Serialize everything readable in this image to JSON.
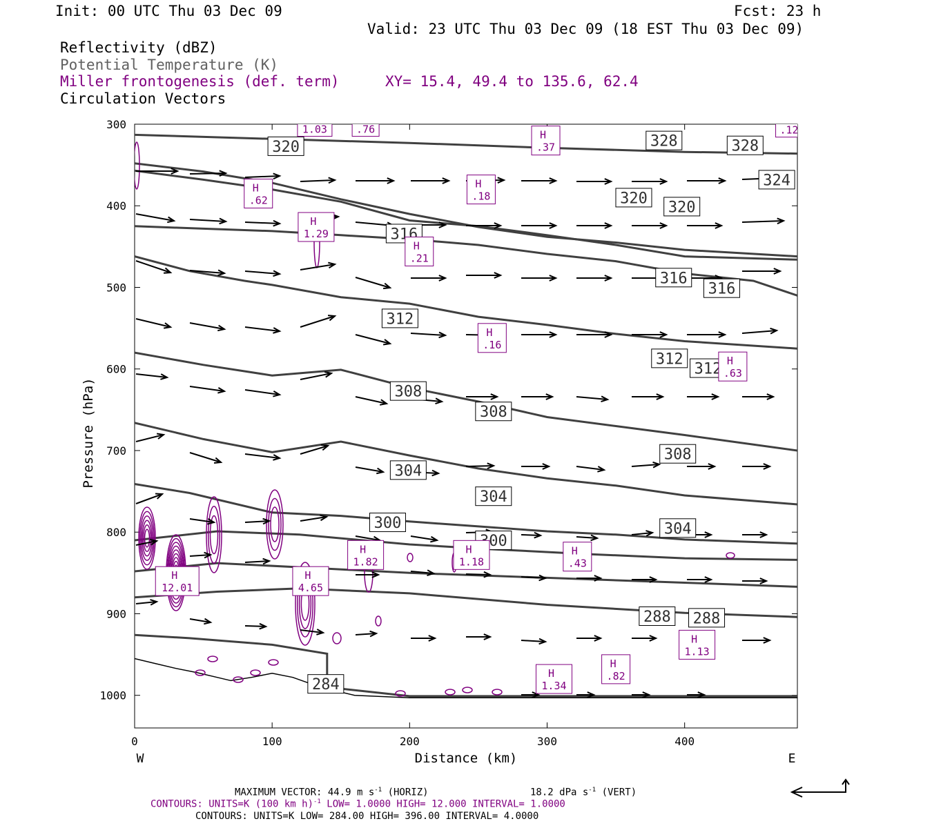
{
  "header": {
    "init": "Init: 00 UTC Thu 03 Dec 09",
    "fcst": "Fcst:   23 h",
    "valid": "Valid: 23 UTC Thu 03 Dec 09 (18 EST Thu 03 Dec 09)"
  },
  "legend": {
    "line1": "Reflectivity (dBZ)",
    "line2": "Potential Temperature (K)",
    "line3": "Miller frontogenesis (def. term)",
    "xy": "XY=  15.4, 49.4 to 135.6, 62.4",
    "line4": "Circulation Vectors"
  },
  "footer": {
    "max_vector": "MAXIMUM VECTOR:  44.9 m s",
    "max_vector_sup": "-1",
    "max_vector_tail": " (HORIZ)",
    "vert": "18.2 dPa s",
    "vert_sup": "-1",
    "vert_tail": " (VERT)",
    "contours1_a": "CONTOURS:  UNITS=K (100 km h)",
    "contours1_sup": "-1",
    "contours1_b": "  LOW=  1.0000       HIGH=  12.000       INTERVAL=   1.0000",
    "contours2": "CONTOURS:  UNITS=K  LOW=  284.00       HIGH=  396.00       INTERVAL=   4.0000"
  },
  "colors": {
    "theta": "#404040",
    "frontogenesis": "#800080",
    "vectors": "#000000",
    "text": "#000000"
  },
  "chart_data": {
    "type": "cross-section",
    "xlabel": "Distance (km)",
    "ylabel": "Pressure (hPa)",
    "xlim": [
      0,
      482
    ],
    "ylim": [
      1040,
      300
    ],
    "x_ticks": [
      0,
      100,
      200,
      300,
      400
    ],
    "y_ticks": [
      300,
      400,
      500,
      600,
      700,
      800,
      900,
      1000
    ],
    "x_end_labels": {
      "left": "W",
      "right": "E"
    },
    "theta_levels": [
      {
        "points": [
          [
            0,
            313
          ],
          [
            100,
            318
          ],
          [
            200,
            323
          ],
          [
            300,
            329
          ],
          [
            400,
            334
          ],
          [
            482,
            336
          ]
        ]
      },
      {
        "points": [
          [
            0,
            348
          ],
          [
            50,
            358
          ],
          [
            100,
            372
          ],
          [
            150,
            392
          ],
          [
            200,
            410
          ],
          [
            250,
            426
          ],
          [
            300,
            438
          ],
          [
            350,
            445
          ],
          [
            400,
            454
          ],
          [
            482,
            462
          ]
        ]
      },
      {
        "points": [
          [
            0,
            357
          ],
          [
            50,
            368
          ],
          [
            100,
            380
          ],
          [
            150,
            395
          ],
          [
            200,
            418
          ],
          [
            250,
            425
          ],
          [
            300,
            436
          ],
          [
            350,
            448
          ],
          [
            400,
            462
          ],
          [
            482,
            466
          ]
        ]
      },
      {
        "points": [
          [
            0,
            462
          ],
          [
            40,
            480
          ],
          [
            80,
            492
          ],
          [
            100,
            497
          ],
          [
            150,
            512
          ],
          [
            200,
            520
          ],
          [
            250,
            536
          ],
          [
            300,
            546
          ],
          [
            350,
            557
          ],
          [
            400,
            566
          ],
          [
            482,
            575
          ]
        ]
      },
      {
        "points": [
          [
            0,
            425
          ],
          [
            50,
            428
          ],
          [
            100,
            431
          ],
          [
            150,
            436
          ],
          [
            200,
            441
          ],
          [
            250,
            448
          ],
          [
            300,
            459
          ],
          [
            350,
            468
          ],
          [
            400,
            483
          ],
          [
            450,
            492
          ],
          [
            482,
            510
          ]
        ]
      },
      {
        "points": [
          [
            0,
            580
          ],
          [
            50,
            595
          ],
          [
            100,
            608
          ],
          [
            150,
            601
          ],
          [
            200,
            623
          ],
          [
            250,
            640
          ],
          [
            300,
            659
          ],
          [
            350,
            670
          ],
          [
            400,
            681
          ],
          [
            482,
            700
          ]
        ]
      },
      {
        "points": [
          [
            0,
            666
          ],
          [
            50,
            686
          ],
          [
            100,
            702
          ],
          [
            150,
            689
          ],
          [
            200,
            706
          ],
          [
            250,
            722
          ],
          [
            300,
            734
          ],
          [
            350,
            743
          ],
          [
            400,
            755
          ],
          [
            482,
            766
          ]
        ]
      },
      {
        "points": [
          [
            0,
            741
          ],
          [
            40,
            752
          ],
          [
            100,
            776
          ],
          [
            150,
            780
          ],
          [
            200,
            787
          ],
          [
            250,
            793
          ],
          [
            300,
            799
          ],
          [
            350,
            803
          ],
          [
            400,
            809
          ],
          [
            482,
            814
          ]
        ]
      },
      {
        "points": [
          [
            0,
            810
          ],
          [
            60,
            799
          ],
          [
            120,
            803
          ],
          [
            200,
            815
          ],
          [
            260,
            821
          ],
          [
            330,
            827
          ],
          [
            400,
            832
          ],
          [
            482,
            834
          ]
        ]
      },
      {
        "points": [
          [
            0,
            848
          ],
          [
            60,
            838
          ],
          [
            120,
            843
          ],
          [
            200,
            850
          ],
          [
            300,
            856
          ],
          [
            400,
            862
          ],
          [
            482,
            867
          ]
        ]
      },
      {
        "points": [
          [
            0,
            880
          ],
          [
            60,
            873
          ],
          [
            120,
            869
          ],
          [
            200,
            875
          ],
          [
            300,
            889
          ],
          [
            400,
            899
          ],
          [
            482,
            904
          ]
        ]
      },
      {
        "points": [
          [
            0,
            926
          ],
          [
            40,
            930
          ],
          [
            100,
            938
          ],
          [
            140,
            949
          ],
          [
            140,
            990
          ],
          [
            200,
            1001
          ],
          [
            300,
            1001
          ],
          [
            400,
            1001
          ],
          [
            482,
            1001
          ]
        ]
      }
    ],
    "theta_labels": [
      {
        "x": 110,
        "p": 327,
        "text": "320"
      },
      {
        "x": 385,
        "p": 320,
        "text": "328"
      },
      {
        "x": 444,
        "p": 326,
        "text": "328"
      },
      {
        "x": 467,
        "p": 368,
        "text": "324"
      },
      {
        "x": 363,
        "p": 390,
        "text": "320"
      },
      {
        "x": 398,
        "p": 401,
        "text": "320"
      },
      {
        "x": 196,
        "p": 434,
        "text": "316"
      },
      {
        "x": 392,
        "p": 488,
        "text": "316"
      },
      {
        "x": 427,
        "p": 501,
        "text": "316"
      },
      {
        "x": 193,
        "p": 538,
        "text": "312"
      },
      {
        "x": 389,
        "p": 587,
        "text": "312"
      },
      {
        "x": 417,
        "p": 599,
        "text": "312"
      },
      {
        "x": 199,
        "p": 627,
        "text": "308"
      },
      {
        "x": 261,
        "p": 652,
        "text": "308"
      },
      {
        "x": 395,
        "p": 704,
        "text": "308"
      },
      {
        "x": 199,
        "p": 724,
        "text": "304"
      },
      {
        "x": 261,
        "p": 756,
        "text": "304"
      },
      {
        "x": 395,
        "p": 795,
        "text": "304"
      },
      {
        "x": 184,
        "p": 788,
        "text": "300"
      },
      {
        "x": 261,
        "p": 810,
        "text": "300"
      },
      {
        "x": 380,
        "p": 903,
        "text": "288"
      },
      {
        "x": 416,
        "p": 905,
        "text": "288"
      },
      {
        "x": 139,
        "p": 986,
        "text": "284"
      }
    ],
    "frontogenesis_maxima": [
      {
        "x": 90,
        "p": 385,
        "text": ".62"
      },
      {
        "x": 132,
        "p": 426,
        "text": "1.29"
      },
      {
        "x": 252,
        "p": 380,
        "text": ".18"
      },
      {
        "x": 207,
        "p": 456,
        "text": ".21"
      },
      {
        "x": 260,
        "p": 562,
        "text": ".16"
      },
      {
        "x": 299,
        "p": 320,
        "text": ".37"
      },
      {
        "x": 435,
        "p": 597,
        "text": ".63"
      },
      {
        "x": 31,
        "p": 860,
        "text": "12.01"
      },
      {
        "x": 128,
        "p": 860,
        "text": "4.65"
      },
      {
        "x": 168,
        "p": 828,
        "text": "1.82"
      },
      {
        "x": 245,
        "p": 828,
        "text": "1.18"
      },
      {
        "x": 322,
        "p": 830,
        "text": ".43"
      },
      {
        "x": 409,
        "p": 938,
        "text": "1.13"
      },
      {
        "x": 350,
        "p": 968,
        "text": ".82"
      },
      {
        "x": 305,
        "p": 980,
        "text": "1.34"
      }
    ],
    "frontogenesis_cut_labels": [
      {
        "x": 131,
        "p": 303,
        "text": "1.03"
      },
      {
        "x": 168,
        "p": 303,
        "text": ".76"
      },
      {
        "x": 476,
        "p": 304,
        "text": ".12"
      }
    ]
  }
}
